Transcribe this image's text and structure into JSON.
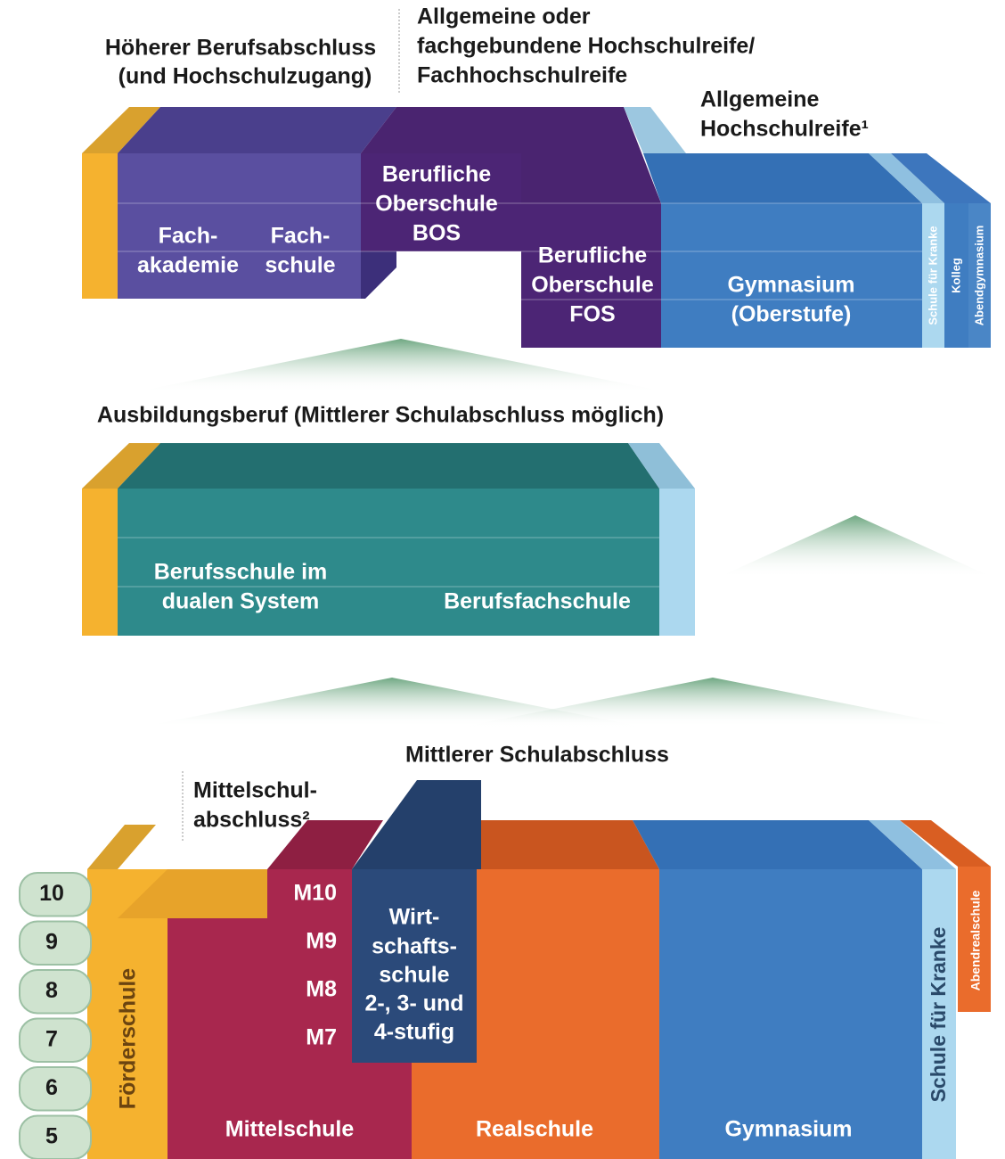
{
  "upper": {
    "label_higher_vocational": [
      "Höherer Berufsabschluss",
      "(und Hochschulzugang)"
    ],
    "label_subject_entrance": [
      "Allgemeine oder",
      "fachgebundene Hochschulreife/",
      "Fachhochschulreife"
    ],
    "label_general_entrance": [
      "Allgemeine",
      "Hochschulreife¹"
    ],
    "fachakademie": [
      "Fach-",
      "akademie"
    ],
    "fachschule": [
      "Fach-",
      "schule"
    ],
    "bos": [
      "Berufliche",
      "Oberschule",
      "BOS"
    ],
    "fos": [
      "Berufliche",
      "Oberschule",
      "FOS"
    ],
    "gymnasium": [
      "Gymnasium",
      "(Oberstufe)"
    ],
    "hospital_school": "Schule für Kranke",
    "kolleg": "Kolleg",
    "evening_gymnasium": "Abendgymnasium"
  },
  "middle": {
    "label": "Ausbildungsberuf (Mittlerer Schulabschluss möglich)",
    "dual_system": [
      "Berufsschule im",
      "dualen System"
    ],
    "vocational_school": "Berufsfachschule"
  },
  "lower": {
    "label_intermediate": "Mittlerer Schulabschluss",
    "label_mittelschule": [
      "Mittelschul-",
      "abschluss²"
    ],
    "grades": [
      10,
      9,
      8,
      7,
      6,
      5
    ],
    "m_levels": [
      "M10",
      "M9",
      "M8",
      "M7"
    ],
    "wirtschaftsschule": [
      "Wirt-",
      "schafts-",
      "schule",
      "2-, 3- und",
      "4-stufig"
    ],
    "foerderschule": "Förderschule",
    "mittelschule": "Mittelschule",
    "realschule": "Realschule",
    "gymnasium": "Gymnasium",
    "hospital_school": "Schule für Kranke",
    "evening_realschule": "Abendrealschule"
  }
}
